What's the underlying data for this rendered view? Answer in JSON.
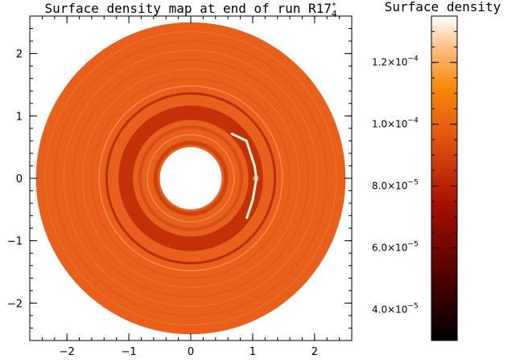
{
  "chart_data": {
    "type": "heatmap",
    "title_prefix": "Surface density map at end of run R17",
    "title_superscript": "*",
    "title_subscript": "4",
    "xlim": [
      -2.6,
      2.6
    ],
    "ylim": [
      -2.6,
      2.6
    ],
    "x_ticks": [
      {
        "value": -2,
        "label": "−2"
      },
      {
        "value": -1,
        "label": "−1"
      },
      {
        "value": 0,
        "label": "0"
      },
      {
        "value": 1,
        "label": "1"
      },
      {
        "value": 2,
        "label": "2"
      }
    ],
    "y_ticks": [
      {
        "value": 2,
        "label": "2"
      },
      {
        "value": 1,
        "label": "1"
      },
      {
        "value": 0,
        "label": "0"
      },
      {
        "value": -1,
        "label": "−1"
      },
      {
        "value": -2,
        "label": "−2"
      }
    ],
    "disk": {
      "inner_radius": 0.5,
      "outer_radius": 2.5,
      "base_color": "#e8601c",
      "gap_radius": 1.05,
      "gap_color": "#bf2c06"
    },
    "colorbar": {
      "title": "Surface density",
      "range": [
        3e-05,
        0.000135
      ],
      "ticks": [
        {
          "value": 4e-05,
          "mantissa": "4.0×10",
          "exponent": "−5"
        },
        {
          "value": 6e-05,
          "mantissa": "6.0×10",
          "exponent": "−5"
        },
        {
          "value": 8e-05,
          "mantissa": "8.0×10",
          "exponent": "−5"
        },
        {
          "value": 0.0001,
          "mantissa": "1.0×10",
          "exponent": "−4"
        },
        {
          "value": 0.00012,
          "mantissa": "1.2×10",
          "exponent": "−4"
        }
      ]
    }
  }
}
